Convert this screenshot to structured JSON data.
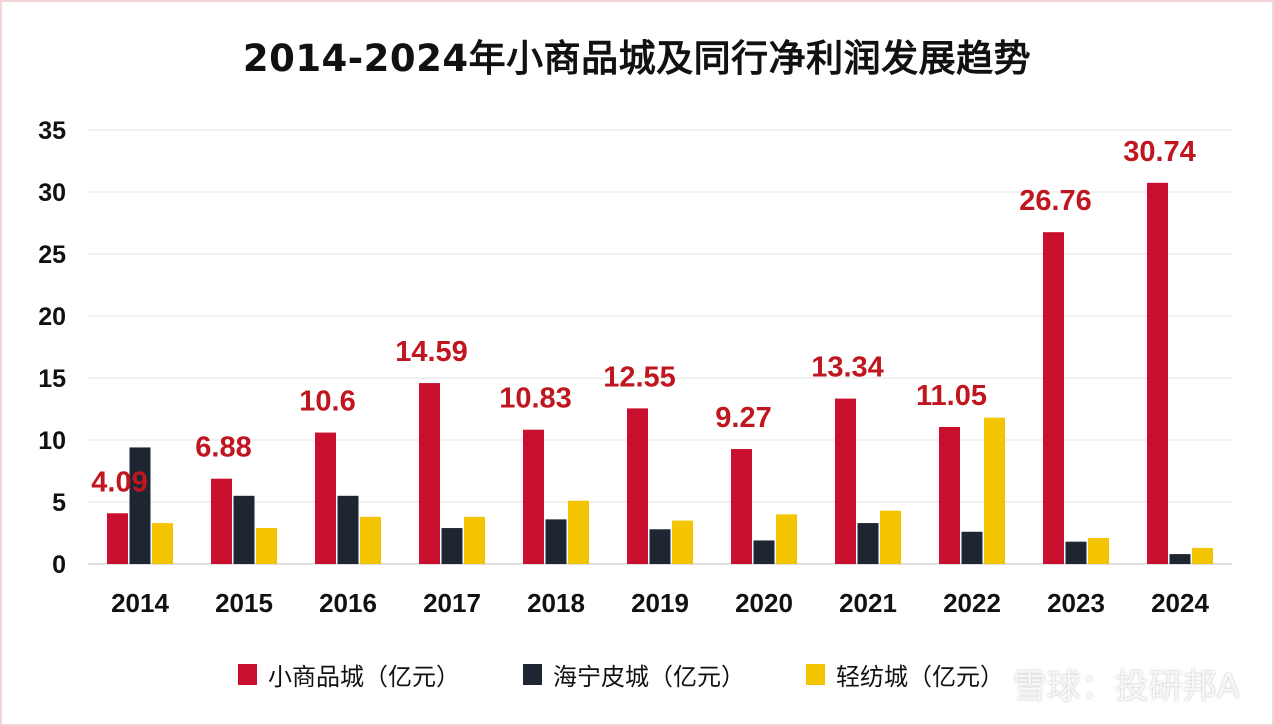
{
  "chart_data": {
    "type": "bar",
    "title": "2014-2024年小商品城及同行净利润发展趋势",
    "categories": [
      "2014",
      "2015",
      "2016",
      "2017",
      "2018",
      "2019",
      "2020",
      "2021",
      "2022",
      "2023",
      "2024"
    ],
    "series": [
      {
        "name": "小商品城（亿元）",
        "color": "#c8102e",
        "values": [
          4.09,
          6.88,
          10.6,
          14.59,
          10.83,
          12.55,
          9.27,
          13.34,
          11.05,
          26.76,
          30.74
        ],
        "data_labels": [
          "4.09",
          "6.88",
          "10.6",
          "14.59",
          "10.83",
          "12.55",
          "9.27",
          "13.34",
          "11.05",
          "26.76",
          "30.74"
        ]
      },
      {
        "name": "海宁皮城（亿元）",
        "color": "#1f2633",
        "values": [
          9.4,
          5.5,
          5.5,
          2.9,
          3.6,
          2.8,
          1.9,
          3.3,
          2.6,
          1.8,
          0.8
        ]
      },
      {
        "name": "轻纺城（亿元）",
        "color": "#f5c400",
        "values": [
          3.3,
          2.9,
          3.8,
          3.8,
          5.1,
          3.5,
          4.0,
          4.3,
          11.8,
          2.1,
          1.3
        ]
      }
    ],
    "yticks": [
      "0",
      "5",
      "10",
      "15",
      "20",
      "25",
      "30",
      "35"
    ],
    "ylim": [
      0,
      35
    ],
    "grid": true,
    "legend_position": "bottom",
    "data_label_color": "#c0161f"
  },
  "watermark": "雪球：投研邦A"
}
